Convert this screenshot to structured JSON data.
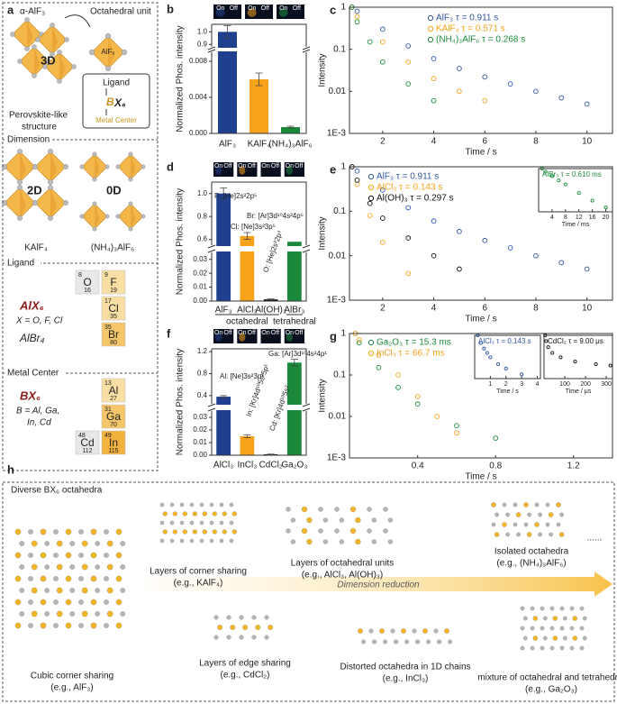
{
  "panel_a": {
    "letter": "a",
    "structure_name": "α-AlF₃",
    "unit_label": "Octahedral unit",
    "unit_name": "AlF₆",
    "dim_3d": "3D",
    "structure_desc": [
      "Perovskite-like",
      "structure"
    ],
    "ligand_box": {
      "ligand": "Ligand",
      "b": "B",
      "x6": "X₆",
      "center": "Metal Center"
    },
    "dimension_heading": "Dimension",
    "dim_2d": "2D",
    "dim_0d": "0D",
    "dim_2d_name": "KAlF₄",
    "dim_0d_name": "(NH₄)₃AlF₆",
    "ligand_heading": "Ligand",
    "ligand_formula": "AlX₆",
    "ligand_rule": "X = O, F, Cl",
    "ligand_extra": "AlBr₄",
    "ligand_elements": [
      {
        "symbol": "O",
        "number": 8,
        "mass": 16
      },
      {
        "symbol": "F",
        "number": 9,
        "mass": 19
      },
      {
        "symbol": "Cl",
        "number": 17,
        "mass": 35
      },
      {
        "symbol": "Br",
        "number": 35,
        "mass": 80
      }
    ],
    "metal_heading": "Metal Center",
    "metal_formula": "BX₆",
    "metal_rule": [
      "B = Al, Ga,",
      "In, Cd"
    ],
    "metal_elements": [
      {
        "symbol": "Al",
        "number": 13,
        "mass": 27
      },
      {
        "symbol": "Ga",
        "number": 31,
        "mass": 70
      },
      {
        "symbol": "Cd",
        "number": 48,
        "mass": 112
      },
      {
        "symbol": "In",
        "number": 49,
        "mass": 115
      }
    ]
  },
  "chart_data": [
    {
      "type": "bar",
      "letter": "b",
      "ylabel": "Normalized Phos. intensity",
      "categories": [
        "AlF₃",
        "KAlF₄",
        "(NH₄)₃AlF₆"
      ],
      "values": [
        1.0,
        0.006,
        0.0007
      ],
      "errors": [
        0.05,
        0.0007,
        0.0001
      ],
      "colors": [
        "#1f3f8f",
        "#f7a21b",
        "#1a8a3a"
      ],
      "ylim_lower": [
        0,
        0.009
      ],
      "yticks_lower": [
        {
          "value": 0,
          "label": "0.000"
        },
        {
          "value": 0.004,
          "label": "0.004"
        },
        {
          "value": 0.008,
          "label": "0.008"
        }
      ],
      "ylim_upper": [
        0.88,
        1.06
      ],
      "yticks_upper": [
        {
          "value": 0.9,
          "label": "0.9"
        },
        {
          "value": 1.0,
          "label": "1.0"
        }
      ],
      "strip_labels": [
        "On",
        "Off"
      ],
      "annotations": [],
      "groups": []
    },
    {
      "type": "scatter",
      "letter": "c",
      "log_y": true,
      "xlabel": "Time / s",
      "ylabel": "Intensity",
      "xlim": [
        0.7,
        11
      ],
      "xticks": [
        2,
        4,
        6,
        8,
        10
      ],
      "ylim": [
        0.001,
        1
      ],
      "yticks": [
        {
          "value": 0.001,
          "label": "1E-3"
        },
        0.01,
        0.1,
        1
      ],
      "series": [
        {
          "name": "AlF₃   τ = 0.911 s",
          "color": "#2f56a8",
          "x": [
            0.8,
            1,
            2,
            3,
            4,
            5,
            6,
            7,
            8,
            9,
            10
          ],
          "values": [
            1,
            0.8,
            0.3,
            0.12,
            0.06,
            0.035,
            0.022,
            0.015,
            0.01,
            0.007,
            0.005
          ]
        },
        {
          "name": "KAlF₄   τ = 0.571 s",
          "color": "#f7a21b",
          "x": [
            0.8,
            1,
            2,
            3,
            4,
            5,
            6
          ],
          "values": [
            1,
            0.6,
            0.15,
            0.05,
            0.02,
            0.01,
            0.006
          ]
        },
        {
          "name": "(NH₄)₃AlF₆  τ = 0.268 s",
          "color": "#1a8a3a",
          "x": [
            0.8,
            1,
            1.5,
            2,
            3,
            4
          ],
          "values": [
            1,
            0.45,
            0.15,
            0.05,
            0.015,
            0.006
          ]
        }
      ],
      "insets": []
    },
    {
      "type": "bar",
      "letter": "d",
      "ylabel": "Normalized Phos. intensity",
      "categories": [
        "AlF₃",
        "AlCl₃",
        "Al(OH)₃",
        "AlBr₃"
      ],
      "values": [
        1.0,
        0.63,
        0.0012,
        0.58
      ],
      "errors": [
        0.05,
        0.03,
        0.0003,
        null
      ],
      "colors": [
        "#1f3f8f",
        "#f7a21b",
        "#111111",
        "#1a8a3a"
      ],
      "ylim_lower": [
        0,
        0.035
      ],
      "yticks_lower": [
        {
          "value": 0,
          "label": "0.00"
        },
        0.01,
        0.02,
        0.03
      ],
      "ylim_upper": [
        0.55,
        1.1
      ],
      "yticks_upper": [
        0.6,
        0.8,
        {
          "value": 1.0,
          "label": "1.0"
        }
      ],
      "strip_labels": [
        "On",
        "Off"
      ],
      "annotations": [
        "F: [He]2s²2p⁵",
        "Cl: [Ne]3s²3p⁵",
        "O: [He]2s²2p⁴",
        "Br: [Ar]3d¹⁰4s²4p⁵"
      ],
      "groups": [
        {
          "name": "octahedral",
          "span": [
            0,
            2
          ]
        },
        {
          "name": "tetrahedral",
          "span": [
            3,
            3
          ]
        }
      ]
    },
    {
      "type": "scatter",
      "letter": "e",
      "log_y": true,
      "xlabel": "Time / s",
      "ylabel": "Intensity",
      "xlim": [
        0.7,
        11
      ],
      "xticks": [
        2,
        4,
        6,
        8,
        10
      ],
      "ylim": [
        0.001,
        1
      ],
      "yticks": [
        {
          "value": 0.001,
          "label": "1E-3"
        },
        0.01,
        0.1,
        1
      ],
      "series": [
        {
          "name": "AlF₃  τ = 0.911 s",
          "color": "#2f56a8",
          "x": [
            0.8,
            1,
            2,
            3,
            4,
            5,
            6,
            7,
            8,
            9,
            10
          ],
          "values": [
            1,
            0.8,
            0.3,
            0.12,
            0.06,
            0.035,
            0.022,
            0.015,
            0.01,
            0.007,
            0.005
          ]
        },
        {
          "name": "AlCl₃  τ = 0.143 s",
          "color": "#f7a21b",
          "x": [
            0.8,
            1,
            1.5,
            2,
            3
          ],
          "values": [
            1,
            0.4,
            0.08,
            0.02,
            0.004
          ]
        },
        {
          "name": "Al(OH)₃  τ = 0.297 s",
          "color": "#111111",
          "x": [
            0.8,
            1,
            1.5,
            2,
            3,
            4,
            5
          ],
          "values": [
            1,
            0.5,
            0.15,
            0.07,
            0.025,
            0.01,
            0.005
          ]
        }
      ],
      "insets": [
        {
          "xlabel": "Time / ms",
          "xlim": [
            0,
            22
          ],
          "xticks": [
            4,
            8,
            12,
            16,
            20
          ],
          "ylim": [
            0.001,
            1
          ],
          "series": [
            {
              "name": "AlBr₃  τ = 0.610 ms",
              "color": "#1a8a3a",
              "x": [
                1,
                2,
                4,
                6,
                8,
                12,
                16,
                20
              ],
              "values": [
                1,
                0.6,
                0.3,
                0.15,
                0.08,
                0.02,
                0.006,
                0.002
              ]
            }
          ]
        }
      ]
    },
    {
      "type": "bar",
      "letter": "f",
      "ylabel": "Normalized Phos. intensity",
      "categories": [
        "AlCl₃",
        "InCl₃",
        "CdCl₂",
        "Ga₂O₃"
      ],
      "values": [
        0.38,
        0.015,
        0.0007,
        1.0
      ],
      "errors": [
        0.02,
        0.001,
        0.0002,
        0.06
      ],
      "colors": [
        "#1f3f8f",
        "#f7a21b",
        "#111111",
        "#1a8a3a"
      ],
      "ylim_lower": [
        0,
        0.035
      ],
      "yticks_lower": [
        {
          "value": 0,
          "label": "0.00"
        },
        0.01,
        0.02,
        0.03
      ],
      "ylim_upper": [
        0.25,
        1.25
      ],
      "yticks_upper": [
        0.4,
        0.8,
        1.2
      ],
      "strip_labels": [
        "On",
        "Off"
      ],
      "annotations": [
        "Al: [Ne]3s²3p¹",
        "In: [Kr]4d¹⁰5s²5p¹",
        "Cd: [Kr]4d¹⁰5s²",
        "Ga: [Ar]3d¹⁰4s²4p¹"
      ],
      "groups": []
    },
    {
      "type": "scatter",
      "letter": "g",
      "log_y": true,
      "xlabel": "Time / s",
      "ylabel": "Intensity",
      "xlim": [
        0.05,
        1.4
      ],
      "xticks": [
        0.4,
        0.8,
        1.2
      ],
      "ylim": [
        0.001,
        1
      ],
      "yticks": [
        {
          "value": 0.001,
          "label": "1E-3"
        },
        0.01,
        0.1,
        1
      ],
      "series": [
        {
          "name": "Ga₂O₃  τ = 15.3 ms",
          "color": "#1a8a3a",
          "x": [
            0.08,
            0.1,
            0.2,
            0.3,
            0.4,
            0.6,
            0.8
          ],
          "values": [
            1,
            0.6,
            0.15,
            0.05,
            0.02,
            0.006,
            0.003
          ]
        },
        {
          "name": "InCl₃  τ = 66.7 ms",
          "color": "#f7a21b",
          "x": [
            0.08,
            0.1,
            0.2,
            0.3,
            0.4,
            0.5,
            0.6
          ],
          "values": [
            1,
            0.7,
            0.3,
            0.1,
            0.03,
            0.01,
            0.004
          ]
        }
      ],
      "insets": [
        {
          "xlabel": "Time / s",
          "xlim": [
            0,
            4.2
          ],
          "xticks": [
            1,
            2,
            3,
            4
          ],
          "ylim": [
            0.001,
            1
          ],
          "series": [
            {
              "name": "AlCl₃  τ = 0.143 s",
              "color": "#2f56a8",
              "x": [
                0.2,
                0.4,
                0.6,
                0.8,
                1,
                1.5,
                2,
                3
              ],
              "values": [
                1,
                0.3,
                0.12,
                0.06,
                0.03,
                0.01,
                0.005,
                0.002
              ]
            }
          ]
        },
        {
          "xlabel": "Time / μs",
          "xlim": [
            0,
            330
          ],
          "xticks": [
            100,
            200,
            300
          ],
          "ylim": [
            0.001,
            1
          ],
          "series": [
            {
              "name": "CdCl₂  τ = 9.00 μs",
              "color": "#111111",
              "x": [
                5,
                10,
                20,
                40,
                80,
                150,
                250,
                320
              ],
              "values": [
                1,
                0.4,
                0.15,
                0.06,
                0.03,
                0.015,
                0.01,
                0.008
              ]
            }
          ]
        }
      ]
    }
  ],
  "panel_h": {
    "letter": "h",
    "heading": "Diverse BX₆ octahedra",
    "arrow_label": "Dimension reduction",
    "more": "......",
    "structures": [
      {
        "name": "Cubic corner sharing",
        "example": "(e.g., AlF₃)"
      },
      {
        "name": "Layers of corner sharing",
        "example": "(e.g., KAlF₄)"
      },
      {
        "name": "Layers of octahedral units",
        "example": "(e.g., AlCl₃, Al(OH)₃)"
      },
      {
        "name": "Isolated octahedra",
        "example": "(e.g., (NH₄)₃AlF₆)"
      },
      {
        "name": "Layers of edge sharing",
        "example": "(e.g., CdCl₂)"
      },
      {
        "name": "Distorted octahedra in 1D chains",
        "example": "(e.g., InCl₃)"
      },
      {
        "name": "mixture of octahedral and tetrahedral",
        "example": "(e.g., Ga₂O₃)"
      }
    ]
  }
}
